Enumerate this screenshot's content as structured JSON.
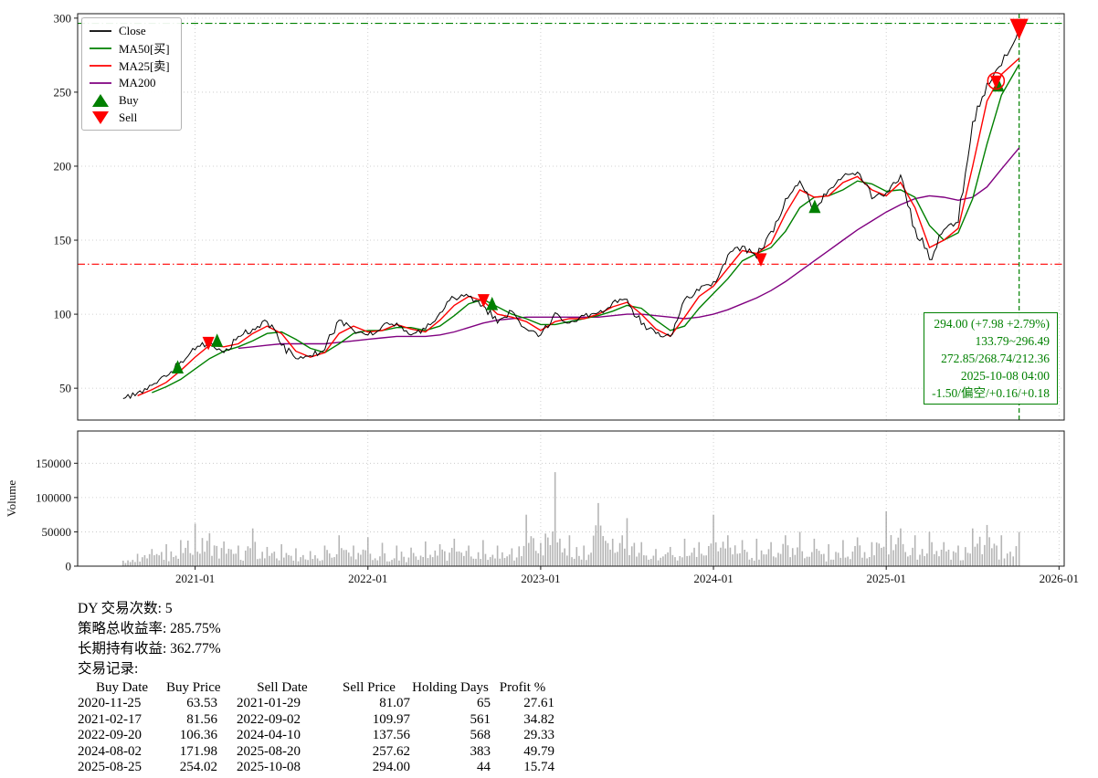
{
  "chart_data": {
    "type": "line",
    "x_domain": [
      2020.32,
      2026.03
    ],
    "price_domain": [
      28.5,
      303
    ],
    "volume_domain": [
      0,
      197000
    ],
    "x_ticks": [
      {
        "t": 2021,
        "label": "2021-01"
      },
      {
        "t": 2022,
        "label": "2022-01"
      },
      {
        "t": 2023,
        "label": "2023-01"
      },
      {
        "t": 2024,
        "label": "2024-01"
      },
      {
        "t": 2025,
        "label": "2025-01"
      },
      {
        "t": 2026,
        "label": "2026-01"
      }
    ],
    "price_ticks": [
      50,
      100,
      150,
      200,
      250,
      300
    ],
    "volume_ticks": [
      0,
      50000,
      100000,
      150000
    ],
    "volume_axis_label": "Volume",
    "dates": [
      "2020-08-01",
      "2020-09-01",
      "2020-10-01",
      "2020-11-01",
      "2020-12-01",
      "2021-01-01",
      "2021-02-01",
      "2021-03-01",
      "2021-04-01",
      "2021-05-01",
      "2021-06-01",
      "2021-07-01",
      "2021-08-01",
      "2021-09-01",
      "2021-10-01",
      "2021-11-01",
      "2021-12-01",
      "2022-01-01",
      "2022-02-01",
      "2022-03-01",
      "2022-04-01",
      "2022-05-01",
      "2022-06-01",
      "2022-07-01",
      "2022-08-01",
      "2022-09-01",
      "2022-10-01",
      "2022-11-01",
      "2022-12-01",
      "2023-01-01",
      "2023-02-01",
      "2023-03-01",
      "2023-04-01",
      "2023-05-01",
      "2023-06-01",
      "2023-07-01",
      "2023-08-01",
      "2023-09-01",
      "2023-10-01",
      "2023-11-01",
      "2023-12-01",
      "2024-01-01",
      "2024-02-01",
      "2024-03-01",
      "2024-04-01",
      "2024-05-01",
      "2024-06-01",
      "2024-07-01",
      "2024-08-01",
      "2024-09-01",
      "2024-10-01",
      "2024-11-01",
      "2024-12-01",
      "2025-01-01",
      "2025-02-01",
      "2025-03-01",
      "2025-04-01",
      "2025-05-01",
      "2025-06-01",
      "2025-07-01",
      "2025-08-01",
      "2025-09-01",
      "2025-10-08"
    ],
    "series": {
      "close": {
        "name": "Close",
        "color": "#000000",
        "values": [
          43,
          47,
          52,
          58,
          68,
          76,
          82,
          74,
          85,
          90,
          95,
          79,
          70,
          72,
          76,
          96,
          89,
          86,
          92,
          94,
          86,
          90,
          101,
          111,
          112,
          106,
          94,
          102,
          90,
          86,
          101,
          94,
          99,
          101,
          108,
          110,
          93,
          87,
          85,
          110,
          116,
          122,
          140,
          146,
          138,
          156,
          178,
          190,
          172,
          184,
          193,
          196,
          178,
          182,
          194,
          158,
          137,
          157,
          162,
          230,
          256,
          268,
          294
        ]
      },
      "ma25": {
        "name": "MA25[卖]",
        "color": "#ff0000",
        "values": [
          null,
          45,
          49,
          54,
          62,
          71,
          79,
          78,
          80,
          87,
          92,
          87,
          75,
          71,
          74,
          87,
          92,
          88,
          89,
          93,
          90,
          88,
          96,
          106,
          112,
          109,
          100,
          98,
          95,
          89,
          95,
          97,
          97,
          100,
          105,
          108,
          100,
          90,
          85,
          98,
          112,
          119,
          131,
          143,
          141,
          148,
          168,
          184,
          179,
          180,
          189,
          193,
          184,
          180,
          189,
          172,
          145,
          150,
          158,
          200,
          244,
          262,
          272.85
        ]
      },
      "ma50": {
        "name": "MA50[买]",
        "color": "#008000",
        "values": [
          null,
          null,
          47,
          51,
          56,
          63,
          70,
          75,
          78,
          82,
          87,
          88,
          83,
          77,
          74,
          80,
          87,
          89,
          89,
          91,
          91,
          89,
          92,
          99,
          107,
          110,
          105,
          100,
          97,
          93,
          93,
          95,
          97,
          99,
          102,
          106,
          104,
          96,
          89,
          92,
          104,
          114,
          124,
          136,
          141,
          145,
          156,
          172,
          179,
          180,
          184,
          190,
          188,
          183,
          184,
          179,
          160,
          150,
          155,
          178,
          215,
          248,
          268.74
        ]
      },
      "ma200": {
        "name": "MA200",
        "color": "#800080",
        "values": [
          null,
          null,
          null,
          null,
          null,
          null,
          null,
          null,
          77,
          78,
          79,
          80,
          80,
          80,
          80,
          81,
          82,
          83,
          84,
          85,
          85,
          85,
          86,
          88,
          91,
          94,
          96,
          97,
          98,
          98,
          98,
          98,
          98,
          98,
          99,
          100,
          100,
          99,
          98,
          97,
          98,
          100,
          103,
          107,
          111,
          116,
          122,
          129,
          136,
          143,
          150,
          157,
          163,
          169,
          174,
          178,
          180,
          179,
          177,
          179,
          186,
          198,
          212.36
        ]
      }
    },
    "volume": {
      "color": "#a3a3a3",
      "values": [
        8000,
        18000,
        25000,
        32000,
        38000,
        62000,
        48000,
        36000,
        30000,
        55000,
        28000,
        32000,
        26000,
        22000,
        30000,
        45000,
        30000,
        42000,
        34000,
        30000,
        27000,
        36000,
        32000,
        40000,
        30000,
        38000,
        30000,
        26000,
        75000,
        34000,
        137000,
        45000,
        30000,
        92000,
        40000,
        70000,
        35000,
        25000,
        28000,
        40000,
        35000,
        75000,
        45000,
        38000,
        40000,
        35000,
        45000,
        50000,
        40000,
        32000,
        38000,
        42000,
        35000,
        80000,
        55000,
        45000,
        50000,
        35000,
        30000,
        55000,
        60000,
        45000,
        50000
      ]
    },
    "buy_markers": [
      {
        "date": "2020-11-25",
        "price": 63.53
      },
      {
        "date": "2021-02-17",
        "price": 81.56
      },
      {
        "date": "2022-09-20",
        "price": 106.36
      },
      {
        "date": "2024-08-02",
        "price": 171.98
      },
      {
        "date": "2025-08-25",
        "price": 254.02
      }
    ],
    "sell_markers": [
      {
        "date": "2021-01-29",
        "price": 81.07
      },
      {
        "date": "2022-09-02",
        "price": 109.97
      },
      {
        "date": "2024-04-10",
        "price": 137.56
      },
      {
        "date": "2025-08-20",
        "price": 257.62
      },
      {
        "date": "2025-10-08",
        "price": 294.0,
        "size": "large"
      }
    ],
    "highlight_circle": {
      "date": "2025-08-20",
      "price": 257.62
    },
    "hlines": [
      {
        "value": 296.49,
        "color": "#008000",
        "style": "dashdot"
      },
      {
        "value": 133.79,
        "color": "#ff0000",
        "style": "dashdot"
      }
    ],
    "vline": {
      "date": "2025-10-08",
      "color": "#008000",
      "style": "dashed"
    }
  },
  "legend": {
    "items": [
      {
        "label": "Close",
        "color": "#000000",
        "type": "line"
      },
      {
        "label": "MA50[买]",
        "color": "#008000",
        "type": "line"
      },
      {
        "label": "MA25[卖]",
        "color": "#ff0000",
        "type": "line"
      },
      {
        "label": "MA200",
        "color": "#800080",
        "type": "line"
      },
      {
        "label": "Buy",
        "color": "#008000",
        "type": "tri-up"
      },
      {
        "label": "Sell",
        "color": "#ff0000",
        "type": "tri-down"
      }
    ]
  },
  "annotation": {
    "lines": [
      "294.00 (+7.98 +2.79%)",
      "133.79~296.49",
      "272.85/268.74/212.36",
      "2025-10-08 04:00",
      "-1.50/偏空/+0.16/+0.18"
    ]
  },
  "stats": {
    "lines": [
      "DY 交易次数: 5",
      "策略总收益率: 285.75%",
      "长期持有收益: 362.77%",
      "交易记录:"
    ]
  },
  "trades": {
    "headers": [
      "Buy Date",
      "Buy Price",
      "Sell Date",
      "Sell Price",
      "Holding Days",
      "Profit %"
    ],
    "rows": [
      [
        "2020-11-25",
        "63.53",
        "2021-01-29",
        "81.07",
        "65",
        "27.61"
      ],
      [
        "2021-02-17",
        "81.56",
        "2022-09-02",
        "109.97",
        "561",
        "34.82"
      ],
      [
        "2022-09-20",
        "106.36",
        "2024-04-10",
        "137.56",
        "568",
        "29.33"
      ],
      [
        "2024-08-02",
        "171.98",
        "2025-08-20",
        "257.62",
        "383",
        "49.79"
      ],
      [
        "2025-08-25",
        "254.02",
        "2025-10-08",
        "294.00",
        "44",
        "15.74"
      ]
    ]
  }
}
